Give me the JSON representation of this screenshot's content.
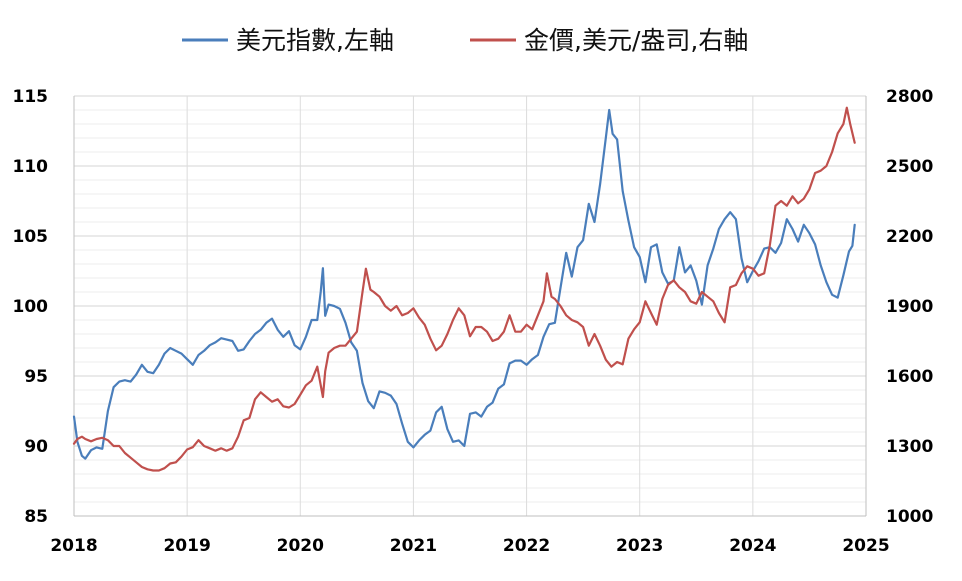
{
  "chart_data": {
    "type": "line",
    "legend_position": "top",
    "grid": true,
    "x_axis": {
      "range": [
        2018,
        2025
      ],
      "ticks": [
        "2018",
        "2019",
        "2020",
        "2021",
        "2022",
        "2023",
        "2024",
        "2025"
      ]
    },
    "y_left": {
      "range": [
        85,
        115
      ],
      "ticks": [
        "85",
        "90",
        "95",
        "100",
        "105",
        "110",
        "115"
      ]
    },
    "y_right": {
      "range": [
        1000,
        2800
      ],
      "ticks": [
        "1000",
        "1300",
        "1600",
        "1900",
        "2200",
        "2500",
        "2800"
      ]
    },
    "series": [
      {
        "name": "美元指數,左軸",
        "axis": "left",
        "color": "#4a7ebb",
        "points": [
          [
            2018.0,
            92.1
          ],
          [
            2018.03,
            90.3
          ],
          [
            2018.07,
            89.3
          ],
          [
            2018.1,
            89.1
          ],
          [
            2018.15,
            89.7
          ],
          [
            2018.2,
            89.9
          ],
          [
            2018.25,
            89.8
          ],
          [
            2018.3,
            92.5
          ],
          [
            2018.35,
            94.2
          ],
          [
            2018.4,
            94.6
          ],
          [
            2018.45,
            94.7
          ],
          [
            2018.5,
            94.6
          ],
          [
            2018.55,
            95.1
          ],
          [
            2018.6,
            95.8
          ],
          [
            2018.65,
            95.3
          ],
          [
            2018.7,
            95.2
          ],
          [
            2018.75,
            95.8
          ],
          [
            2018.8,
            96.6
          ],
          [
            2018.85,
            97.0
          ],
          [
            2018.9,
            96.8
          ],
          [
            2018.95,
            96.6
          ],
          [
            2019.0,
            96.2
          ],
          [
            2019.05,
            95.8
          ],
          [
            2019.1,
            96.5
          ],
          [
            2019.15,
            96.8
          ],
          [
            2019.2,
            97.2
          ],
          [
            2019.25,
            97.4
          ],
          [
            2019.3,
            97.7
          ],
          [
            2019.35,
            97.6
          ],
          [
            2019.4,
            97.5
          ],
          [
            2019.45,
            96.8
          ],
          [
            2019.5,
            96.9
          ],
          [
            2019.55,
            97.5
          ],
          [
            2019.6,
            98.0
          ],
          [
            2019.65,
            98.3
          ],
          [
            2019.7,
            98.8
          ],
          [
            2019.75,
            99.1
          ],
          [
            2019.8,
            98.3
          ],
          [
            2019.85,
            97.8
          ],
          [
            2019.9,
            98.2
          ],
          [
            2019.95,
            97.2
          ],
          [
            2020.0,
            96.9
          ],
          [
            2020.05,
            97.8
          ],
          [
            2020.1,
            99.0
          ],
          [
            2020.15,
            99.0
          ],
          [
            2020.18,
            101.0
          ],
          [
            2020.2,
            102.7
          ],
          [
            2020.22,
            99.3
          ],
          [
            2020.25,
            100.1
          ],
          [
            2020.3,
            100.0
          ],
          [
            2020.35,
            99.8
          ],
          [
            2020.4,
            98.8
          ],
          [
            2020.45,
            97.4
          ],
          [
            2020.5,
            96.8
          ],
          [
            2020.55,
            94.5
          ],
          [
            2020.6,
            93.2
          ],
          [
            2020.65,
            92.7
          ],
          [
            2020.7,
            93.9
          ],
          [
            2020.75,
            93.8
          ],
          [
            2020.8,
            93.6
          ],
          [
            2020.85,
            93.0
          ],
          [
            2020.9,
            91.6
          ],
          [
            2020.95,
            90.3
          ],
          [
            2021.0,
            89.9
          ],
          [
            2021.05,
            90.4
          ],
          [
            2021.1,
            90.8
          ],
          [
            2021.15,
            91.1
          ],
          [
            2021.2,
            92.4
          ],
          [
            2021.25,
            92.8
          ],
          [
            2021.3,
            91.2
          ],
          [
            2021.35,
            90.3
          ],
          [
            2021.4,
            90.4
          ],
          [
            2021.45,
            90.0
          ],
          [
            2021.5,
            92.3
          ],
          [
            2021.55,
            92.4
          ],
          [
            2021.6,
            92.1
          ],
          [
            2021.65,
            92.8
          ],
          [
            2021.7,
            93.1
          ],
          [
            2021.75,
            94.1
          ],
          [
            2021.8,
            94.4
          ],
          [
            2021.85,
            95.9
          ],
          [
            2021.9,
            96.1
          ],
          [
            2021.95,
            96.1
          ],
          [
            2022.0,
            95.8
          ],
          [
            2022.05,
            96.2
          ],
          [
            2022.1,
            96.5
          ],
          [
            2022.15,
            97.8
          ],
          [
            2022.2,
            98.7
          ],
          [
            2022.25,
            98.8
          ],
          [
            2022.3,
            101.3
          ],
          [
            2022.35,
            103.8
          ],
          [
            2022.4,
            102.1
          ],
          [
            2022.45,
            104.2
          ],
          [
            2022.5,
            104.7
          ],
          [
            2022.55,
            107.3
          ],
          [
            2022.6,
            106.0
          ],
          [
            2022.65,
            108.7
          ],
          [
            2022.7,
            112.0
          ],
          [
            2022.73,
            114.0
          ],
          [
            2022.76,
            112.3
          ],
          [
            2022.8,
            111.9
          ],
          [
            2022.85,
            108.2
          ],
          [
            2022.9,
            106.1
          ],
          [
            2022.95,
            104.2
          ],
          [
            2023.0,
            103.5
          ],
          [
            2023.05,
            101.7
          ],
          [
            2023.1,
            104.2
          ],
          [
            2023.15,
            104.4
          ],
          [
            2023.2,
            102.4
          ],
          [
            2023.25,
            101.6
          ],
          [
            2023.3,
            101.8
          ],
          [
            2023.35,
            104.2
          ],
          [
            2023.4,
            102.4
          ],
          [
            2023.45,
            102.9
          ],
          [
            2023.5,
            101.8
          ],
          [
            2023.55,
            100.1
          ],
          [
            2023.6,
            102.9
          ],
          [
            2023.65,
            104.1
          ],
          [
            2023.7,
            105.5
          ],
          [
            2023.75,
            106.2
          ],
          [
            2023.8,
            106.7
          ],
          [
            2023.85,
            106.2
          ],
          [
            2023.9,
            103.4
          ],
          [
            2023.95,
            101.7
          ],
          [
            2024.0,
            102.5
          ],
          [
            2024.05,
            103.2
          ],
          [
            2024.1,
            104.1
          ],
          [
            2024.15,
            104.2
          ],
          [
            2024.2,
            103.8
          ],
          [
            2024.25,
            104.5
          ],
          [
            2024.3,
            106.2
          ],
          [
            2024.35,
            105.5
          ],
          [
            2024.4,
            104.6
          ],
          [
            2024.45,
            105.8
          ],
          [
            2024.5,
            105.2
          ],
          [
            2024.55,
            104.4
          ],
          [
            2024.6,
            102.9
          ],
          [
            2024.65,
            101.7
          ],
          [
            2024.7,
            100.8
          ],
          [
            2024.75,
            100.6
          ],
          [
            2024.8,
            102.2
          ],
          [
            2024.85,
            103.9
          ],
          [
            2024.88,
            104.3
          ],
          [
            2024.9,
            105.8
          ]
        ]
      },
      {
        "name": "金價,美元/盎司,右軸",
        "axis": "right",
        "color": "#c0504d",
        "points": [
          [
            2018.0,
            1310
          ],
          [
            2018.03,
            1330
          ],
          [
            2018.07,
            1340
          ],
          [
            2018.1,
            1330
          ],
          [
            2018.15,
            1320
          ],
          [
            2018.2,
            1330
          ],
          [
            2018.25,
            1335
          ],
          [
            2018.3,
            1325
          ],
          [
            2018.35,
            1300
          ],
          [
            2018.4,
            1300
          ],
          [
            2018.45,
            1270
          ],
          [
            2018.5,
            1250
          ],
          [
            2018.55,
            1230
          ],
          [
            2018.6,
            1210
          ],
          [
            2018.65,
            1200
          ],
          [
            2018.7,
            1195
          ],
          [
            2018.75,
            1195
          ],
          [
            2018.8,
            1205
          ],
          [
            2018.85,
            1225
          ],
          [
            2018.9,
            1230
          ],
          [
            2018.95,
            1255
          ],
          [
            2019.0,
            1285
          ],
          [
            2019.05,
            1295
          ],
          [
            2019.1,
            1325
          ],
          [
            2019.15,
            1300
          ],
          [
            2019.2,
            1290
          ],
          [
            2019.25,
            1280
          ],
          [
            2019.3,
            1290
          ],
          [
            2019.35,
            1280
          ],
          [
            2019.4,
            1290
          ],
          [
            2019.45,
            1340
          ],
          [
            2019.5,
            1410
          ],
          [
            2019.55,
            1420
          ],
          [
            2019.6,
            1500
          ],
          [
            2019.65,
            1530
          ],
          [
            2019.7,
            1510
          ],
          [
            2019.75,
            1490
          ],
          [
            2019.8,
            1500
          ],
          [
            2019.85,
            1470
          ],
          [
            2019.9,
            1465
          ],
          [
            2019.95,
            1480
          ],
          [
            2020.0,
            1520
          ],
          [
            2020.05,
            1560
          ],
          [
            2020.1,
            1580
          ],
          [
            2020.15,
            1640
          ],
          [
            2020.2,
            1510
          ],
          [
            2020.22,
            1620
          ],
          [
            2020.25,
            1700
          ],
          [
            2020.3,
            1720
          ],
          [
            2020.35,
            1730
          ],
          [
            2020.4,
            1730
          ],
          [
            2020.45,
            1760
          ],
          [
            2020.5,
            1790
          ],
          [
            2020.55,
            1960
          ],
          [
            2020.58,
            2060
          ],
          [
            2020.62,
            1970
          ],
          [
            2020.65,
            1960
          ],
          [
            2020.7,
            1940
          ],
          [
            2020.75,
            1900
          ],
          [
            2020.8,
            1880
          ],
          [
            2020.85,
            1900
          ],
          [
            2020.9,
            1860
          ],
          [
            2020.95,
            1870
          ],
          [
            2021.0,
            1890
          ],
          [
            2021.05,
            1850
          ],
          [
            2021.1,
            1820
          ],
          [
            2021.15,
            1760
          ],
          [
            2021.2,
            1710
          ],
          [
            2021.25,
            1730
          ],
          [
            2021.3,
            1780
          ],
          [
            2021.35,
            1840
          ],
          [
            2021.4,
            1890
          ],
          [
            2021.45,
            1860
          ],
          [
            2021.5,
            1770
          ],
          [
            2021.55,
            1810
          ],
          [
            2021.6,
            1810
          ],
          [
            2021.65,
            1790
          ],
          [
            2021.7,
            1750
          ],
          [
            2021.75,
            1760
          ],
          [
            2021.8,
            1790
          ],
          [
            2021.85,
            1860
          ],
          [
            2021.9,
            1790
          ],
          [
            2021.95,
            1790
          ],
          [
            2022.0,
            1820
          ],
          [
            2022.05,
            1800
          ],
          [
            2022.1,
            1860
          ],
          [
            2022.15,
            1920
          ],
          [
            2022.18,
            2040
          ],
          [
            2022.22,
            1940
          ],
          [
            2022.25,
            1930
          ],
          [
            2022.3,
            1900
          ],
          [
            2022.35,
            1860
          ],
          [
            2022.4,
            1840
          ],
          [
            2022.45,
            1830
          ],
          [
            2022.5,
            1810
          ],
          [
            2022.55,
            1730
          ],
          [
            2022.6,
            1780
          ],
          [
            2022.65,
            1730
          ],
          [
            2022.7,
            1670
          ],
          [
            2022.75,
            1640
          ],
          [
            2022.8,
            1660
          ],
          [
            2022.85,
            1650
          ],
          [
            2022.9,
            1760
          ],
          [
            2022.95,
            1800
          ],
          [
            2023.0,
            1830
          ],
          [
            2023.05,
            1920
          ],
          [
            2023.1,
            1870
          ],
          [
            2023.15,
            1820
          ],
          [
            2023.2,
            1930
          ],
          [
            2023.25,
            1990
          ],
          [
            2023.3,
            2010
          ],
          [
            2023.35,
            1980
          ],
          [
            2023.4,
            1960
          ],
          [
            2023.45,
            1920
          ],
          [
            2023.5,
            1910
          ],
          [
            2023.55,
            1960
          ],
          [
            2023.6,
            1940
          ],
          [
            2023.65,
            1920
          ],
          [
            2023.7,
            1870
          ],
          [
            2023.75,
            1830
          ],
          [
            2023.8,
            1980
          ],
          [
            2023.85,
            1990
          ],
          [
            2023.9,
            2040
          ],
          [
            2023.95,
            2070
          ],
          [
            2024.0,
            2060
          ],
          [
            2024.05,
            2030
          ],
          [
            2024.1,
            2040
          ],
          [
            2024.15,
            2160
          ],
          [
            2024.2,
            2330
          ],
          [
            2024.25,
            2350
          ],
          [
            2024.3,
            2330
          ],
          [
            2024.35,
            2370
          ],
          [
            2024.4,
            2340
          ],
          [
            2024.45,
            2360
          ],
          [
            2024.5,
            2400
          ],
          [
            2024.55,
            2470
          ],
          [
            2024.6,
            2480
          ],
          [
            2024.65,
            2500
          ],
          [
            2024.7,
            2560
          ],
          [
            2024.75,
            2640
          ],
          [
            2024.8,
            2680
          ],
          [
            2024.83,
            2750
          ],
          [
            2024.86,
            2680
          ],
          [
            2024.9,
            2600
          ]
        ]
      }
    ]
  }
}
